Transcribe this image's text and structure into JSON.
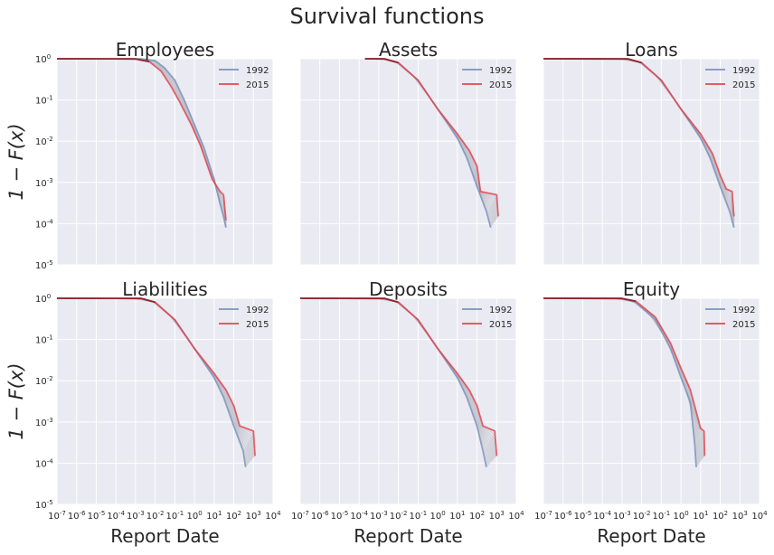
{
  "figure": {
    "title": "Survival functions",
    "ylabel": "1 − F(x)",
    "xlabel": "Report Date",
    "x_ticks": [
      {
        "base": "10",
        "exp": "-7"
      },
      {
        "base": "10",
        "exp": "-6"
      },
      {
        "base": "10",
        "exp": "-5"
      },
      {
        "base": "10",
        "exp": "-4"
      },
      {
        "base": "10",
        "exp": "-3"
      },
      {
        "base": "10",
        "exp": "-2"
      },
      {
        "base": "10",
        "exp": "-1"
      },
      {
        "base": "10",
        "exp": "0"
      },
      {
        "base": "10",
        "exp": "1"
      },
      {
        "base": "10",
        "exp": "2"
      },
      {
        "base": "10",
        "exp": "3"
      },
      {
        "base": "10",
        "exp": "4"
      }
    ],
    "y_ticks": [
      {
        "base": "10",
        "exp": "0"
      },
      {
        "base": "10",
        "exp": "-1"
      },
      {
        "base": "10",
        "exp": "-2"
      },
      {
        "base": "10",
        "exp": "-3"
      },
      {
        "base": "10",
        "exp": "-4"
      },
      {
        "base": "10",
        "exp": "-5"
      }
    ],
    "colors": {
      "panel_bg": "#eaeaf2",
      "grid": "#ffffff",
      "series_1992": "#7d93bb",
      "series_2015": "#e0474f",
      "intermediate": "#b9bcc4",
      "text": "#262626"
    }
  },
  "chart_data": [
    {
      "type": "line",
      "title": "Employees",
      "xscale": "log",
      "yscale": "log",
      "xlim": [
        1e-07,
        10000.0
      ],
      "ylim": [
        1e-05,
        1
      ],
      "legend": {
        "placement": "top-right",
        "entries": [
          "1992",
          "2015"
        ]
      },
      "series": [
        {
          "name": "1992",
          "x": [
            1e-07,
            0.002,
            0.01,
            0.03,
            0.1,
            0.3,
            1,
            3,
            10,
            20,
            30,
            40
          ],
          "y": [
            1,
            0.99,
            0.9,
            0.6,
            0.3,
            0.1,
            0.025,
            0.007,
            0.0012,
            0.0003,
            0.00015,
            8e-05
          ]
        },
        {
          "name": "2015",
          "x": [
            1e-07,
            0.001,
            0.005,
            0.02,
            0.07,
            0.2,
            0.7,
            2,
            8,
            20,
            30,
            40
          ],
          "y": [
            1,
            0.99,
            0.85,
            0.5,
            0.2,
            0.08,
            0.025,
            0.008,
            0.0012,
            0.0006,
            0.0005,
            0.00012
          ]
        }
      ]
    },
    {
      "type": "line",
      "title": "Assets",
      "xscale": "log",
      "yscale": "log",
      "xlim": [
        1e-07,
        10000.0
      ],
      "ylim": [
        1e-05,
        1
      ],
      "legend": {
        "placement": "top-right",
        "entries": [
          "1992",
          "2015"
        ]
      },
      "series": [
        {
          "name": "1992",
          "x": [
            0.0002,
            0.002,
            0.01,
            0.1,
            1,
            10,
            30,
            100,
            300,
            500
          ],
          "y": [
            1,
            0.99,
            0.8,
            0.3,
            0.06,
            0.012,
            0.004,
            0.0008,
            0.0002,
            8e-05
          ]
        },
        {
          "name": "2015",
          "x": [
            0.0002,
            0.002,
            0.01,
            0.1,
            1,
            10,
            40,
            100,
            150,
            1000,
            1200
          ],
          "y": [
            1,
            0.99,
            0.8,
            0.3,
            0.06,
            0.015,
            0.006,
            0.0025,
            0.0006,
            0.0005,
            0.00015
          ]
        }
      ]
    },
    {
      "type": "line",
      "title": "Loans",
      "xscale": "log",
      "yscale": "log",
      "xlim": [
        1e-07,
        10000.0
      ],
      "ylim": [
        1e-05,
        1
      ],
      "legend": {
        "placement": "top-right",
        "entries": [
          "1992",
          "2015"
        ]
      },
      "series": [
        {
          "name": "1992",
          "x": [
            1e-07,
            0.002,
            0.01,
            0.1,
            1,
            10,
            30,
            100,
            300,
            500
          ],
          "y": [
            1,
            0.99,
            0.8,
            0.3,
            0.06,
            0.012,
            0.004,
            0.0008,
            0.0002,
            8e-05
          ]
        },
        {
          "name": "2015",
          "x": [
            1e-07,
            0.002,
            0.01,
            0.1,
            1,
            10,
            40,
            100,
            200,
            400,
            500
          ],
          "y": [
            1,
            0.99,
            0.8,
            0.3,
            0.06,
            0.015,
            0.005,
            0.0015,
            0.0007,
            0.0006,
            0.00015
          ]
        }
      ]
    },
    {
      "type": "line",
      "title": "Liabilities",
      "xscale": "log",
      "yscale": "log",
      "xlim": [
        1e-07,
        10000.0
      ],
      "ylim": [
        1e-05,
        1
      ],
      "legend": {
        "placement": "top-right",
        "entries": [
          "1992",
          "2015"
        ]
      },
      "series": [
        {
          "name": "1992",
          "x": [
            1e-07,
            0.002,
            0.01,
            0.1,
            1,
            10,
            30,
            100,
            300,
            400
          ],
          "y": [
            1,
            0.99,
            0.8,
            0.3,
            0.06,
            0.012,
            0.004,
            0.0008,
            0.0002,
            8e-05
          ]
        },
        {
          "name": "2015",
          "x": [
            1e-07,
            0.002,
            0.01,
            0.1,
            1,
            10,
            40,
            100,
            200,
            1000,
            1200
          ],
          "y": [
            1,
            0.99,
            0.8,
            0.3,
            0.06,
            0.015,
            0.006,
            0.0025,
            0.0008,
            0.0006,
            0.00015
          ]
        }
      ]
    },
    {
      "type": "line",
      "title": "Deposits",
      "xscale": "log",
      "yscale": "log",
      "xlim": [
        1e-07,
        10000.0
      ],
      "ylim": [
        1e-05,
        1
      ],
      "legend": {
        "placement": "top-right",
        "entries": [
          "1992",
          "2015"
        ]
      },
      "series": [
        {
          "name": "1992",
          "x": [
            1e-07,
            0.002,
            0.01,
            0.1,
            1,
            10,
            30,
            100,
            200,
            300
          ],
          "y": [
            1,
            0.99,
            0.8,
            0.3,
            0.06,
            0.012,
            0.004,
            0.0008,
            0.0002,
            8e-05
          ]
        },
        {
          "name": "2015",
          "x": [
            1e-07,
            0.002,
            0.01,
            0.1,
            1,
            10,
            40,
            100,
            200,
            800,
            1000
          ],
          "y": [
            1,
            0.99,
            0.8,
            0.3,
            0.06,
            0.015,
            0.006,
            0.0025,
            0.0008,
            0.0006,
            0.00015
          ]
        }
      ]
    },
    {
      "type": "line",
      "title": "Equity",
      "xscale": "log",
      "yscale": "log",
      "xlim": [
        1e-07,
        10000.0
      ],
      "ylim": [
        1e-05,
        1
      ],
      "legend": {
        "placement": "top-right",
        "entries": [
          "1992",
          "2015"
        ]
      },
      "series": [
        {
          "name": "1992",
          "x": [
            1e-07,
            0.001,
            0.005,
            0.05,
            0.3,
            1,
            3,
            5,
            6
          ],
          "y": [
            1,
            0.99,
            0.8,
            0.3,
            0.06,
            0.012,
            0.003,
            0.0003,
            8e-05
          ]
        },
        {
          "name": "2015",
          "x": [
            1e-07,
            0.001,
            0.005,
            0.05,
            0.3,
            1,
            3,
            10,
            15,
            16
          ],
          "y": [
            1,
            0.99,
            0.85,
            0.35,
            0.08,
            0.02,
            0.006,
            0.0007,
            0.0006,
            0.00015
          ]
        }
      ]
    }
  ]
}
